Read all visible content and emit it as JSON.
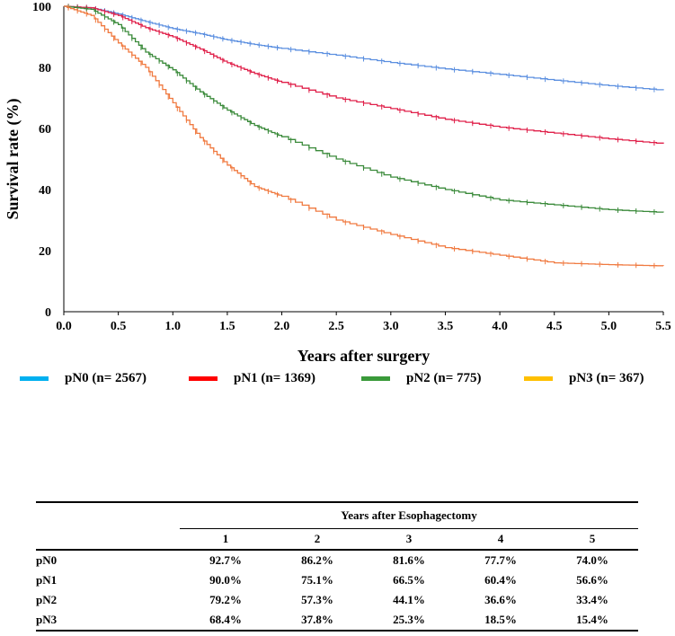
{
  "chart_data": {
    "type": "line",
    "title": "",
    "xlabel": "Years after surgery",
    "ylabel": "Survival rate (%)",
    "xlim": [
      0,
      5.5
    ],
    "ylim": [
      0,
      100
    ],
    "xticks": [
      "0.0",
      "0.5",
      "1.0",
      "1.5",
      "2.0",
      "2.5",
      "3.0",
      "3.5",
      "4.0",
      "4.5",
      "5.0",
      "5.5"
    ],
    "yticks": [
      "0",
      "20",
      "40",
      "60",
      "80",
      "100"
    ],
    "grid": false,
    "legend_position": "bottom",
    "x": [
      0,
      0.25,
      0.5,
      0.75,
      1,
      1.25,
      1.5,
      1.75,
      2,
      2.5,
      3,
      3.5,
      4,
      4.5,
      5,
      5.5
    ],
    "series": [
      {
        "name": "pN0 (n= 2567)",
        "color": "#5b8fe0",
        "legend_color": "#00b0f0",
        "values": [
          100,
          99.5,
          97.5,
          95,
          92.7,
          91,
          89,
          87.5,
          86.2,
          84,
          81.6,
          79.5,
          77.7,
          75.8,
          74,
          72.5
        ]
      },
      {
        "name": "pN1 (n= 1369)",
        "color": "#e0204a",
        "legend_color": "#ff0000",
        "values": [
          100,
          99.5,
          97,
          93,
          90,
          86,
          81.5,
          78,
          75.1,
          70,
          66.5,
          63,
          60.4,
          58.5,
          56.6,
          55
        ]
      },
      {
        "name": "pN2 (n= 775)",
        "color": "#3a8a3a",
        "legend_color": "#3a9a3a",
        "values": [
          100,
          99,
          94,
          85,
          79.2,
          72,
          66,
          61,
          57.3,
          50,
          44.1,
          40,
          36.6,
          35,
          33.4,
          32.5
        ]
      },
      {
        "name": "pN3 (n= 367)",
        "color": "#f07a40",
        "legend_color": "#ffc000",
        "values": [
          100,
          97,
          88,
          80,
          68.4,
          57,
          48,
          41,
          37.8,
          30,
          25.3,
          21,
          18.5,
          16,
          15.4,
          15
        ]
      }
    ]
  },
  "table": {
    "group_header": "Years after Esophagectomy",
    "columns": [
      "1",
      "2",
      "3",
      "4",
      "5"
    ],
    "rows": [
      {
        "label": "pN0",
        "values": [
          "92.7%",
          "86.2%",
          "81.6%",
          "77.7%",
          "74.0%"
        ]
      },
      {
        "label": "pN1",
        "values": [
          "90.0%",
          "75.1%",
          "66.5%",
          "60.4%",
          "56.6%"
        ]
      },
      {
        "label": "pN2",
        "values": [
          "79.2%",
          "57.3%",
          "44.1%",
          "36.6%",
          "33.4%"
        ]
      },
      {
        "label": "pN3",
        "values": [
          "68.4%",
          "37.8%",
          "25.3%",
          "18.5%",
          "15.4%"
        ]
      }
    ]
  }
}
